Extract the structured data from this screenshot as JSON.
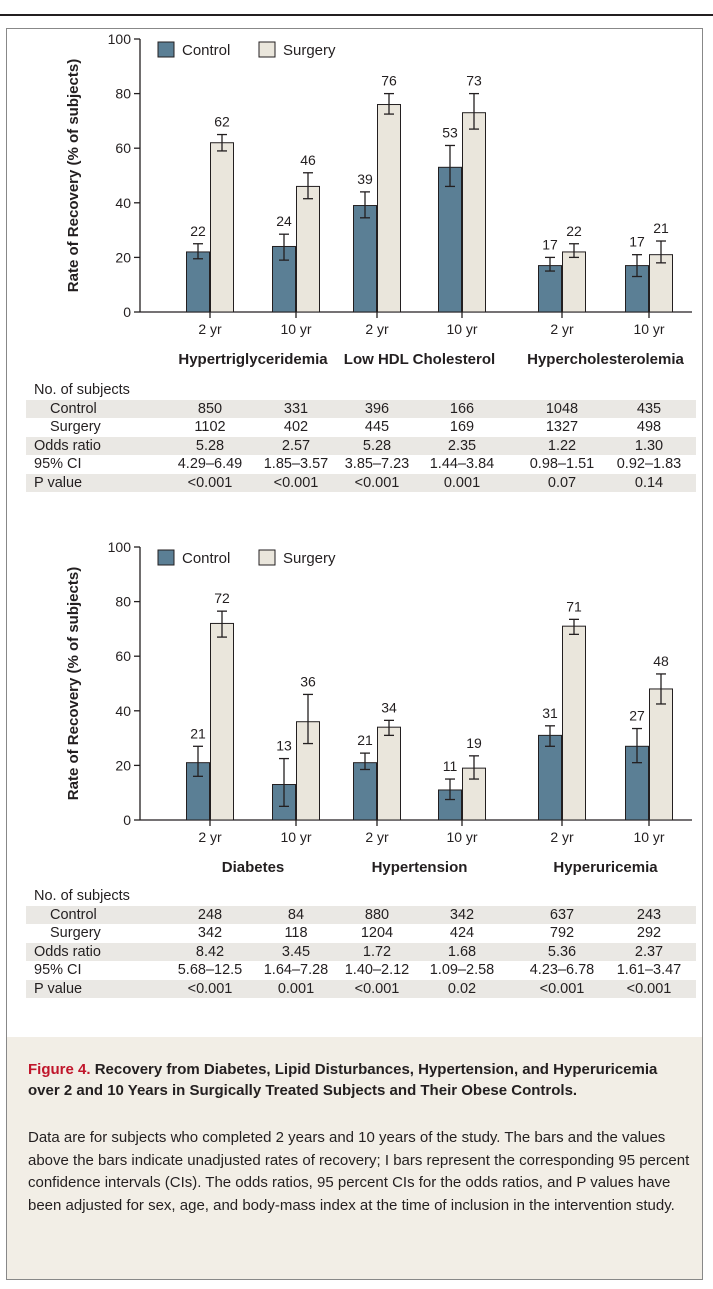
{
  "figure": {
    "label": "Figure 4.",
    "title": "Recovery from Diabetes, Lipid Disturbances, Hypertension, and Hyperuricemia over 2 and 10 Years in Surgically Treated Subjects and Their Obese Controls.",
    "caption": "Data are for subjects who completed 2 years and 10 years of the study. The bars and the values above the bars indicate unadjusted rates of recovery; I bars represent the corresponding 95 percent confidence intervals (CIs). The odds ratios, 95 percent CIs for the odds ratios, and P values have been adjusted for sex, age, and body-mass index at the time of inclusion in the intervention study."
  },
  "colors": {
    "control": "#5b7f95",
    "surgery": "#eae6dc",
    "accent_red": "#c0162b",
    "caption_bg": "#f2eee6"
  },
  "chart_data": [
    {
      "type": "bar",
      "ylabel": "Rate of Recovery (% of subjects)",
      "ylim": [
        0,
        100
      ],
      "yticks": [
        "0",
        "20",
        "40",
        "60",
        "80",
        "100"
      ],
      "legend": [
        "Control",
        "Surgery"
      ],
      "legend_position": "top-left",
      "categories": [
        "2 yr",
        "10 yr",
        "2 yr",
        "10 yr",
        "2 yr",
        "10 yr"
      ],
      "groups": [
        "Hypertriglyceridemia",
        "Low HDL Cholesterol",
        "Hypercholesterolemia"
      ],
      "series": [
        {
          "name": "Control",
          "values": [
            22,
            24,
            39,
            53,
            17,
            17
          ],
          "ci_low": [
            19.5,
            19,
            34.5,
            46,
            15,
            13
          ],
          "ci_high": [
            25,
            28.5,
            44,
            61,
            20,
            21
          ]
        },
        {
          "name": "Surgery",
          "values": [
            62,
            46,
            76,
            73,
            22,
            21
          ],
          "ci_low": [
            59,
            41.5,
            72.5,
            67,
            20,
            18
          ],
          "ci_high": [
            65,
            51,
            80,
            80,
            25,
            26
          ]
        }
      ],
      "table": {
        "heading": "No. of subjects",
        "rows": [
          {
            "label": "Control",
            "values": [
              "850",
              "331",
              "396",
              "166",
              "1048",
              "435"
            ]
          },
          {
            "label": "Surgery",
            "values": [
              "1102",
              "402",
              "445",
              "169",
              "1327",
              "498"
            ]
          },
          {
            "label": "Odds ratio",
            "values": [
              "5.28",
              "2.57",
              "5.28",
              "2.35",
              "1.22",
              "1.30"
            ]
          },
          {
            "label": "95% CI",
            "values": [
              "4.29–6.49",
              "1.85–3.57",
              "3.85–7.23",
              "1.44–3.84",
              "0.98–1.51",
              "0.92–1.83"
            ]
          },
          {
            "label": "P value",
            "values": [
              "<0.001",
              "<0.001",
              "<0.001",
              "0.001",
              "0.07",
              "0.14"
            ]
          }
        ]
      }
    },
    {
      "type": "bar",
      "ylabel": "Rate of Recovery (% of subjects)",
      "ylim": [
        0,
        100
      ],
      "yticks": [
        "0",
        "20",
        "40",
        "60",
        "80",
        "100"
      ],
      "legend": [
        "Control",
        "Surgery"
      ],
      "legend_position": "top-left",
      "categories": [
        "2 yr",
        "10 yr",
        "2 yr",
        "10 yr",
        "2 yr",
        "10 yr"
      ],
      "groups": [
        "Diabetes",
        "Hypertension",
        "Hyperuricemia"
      ],
      "series": [
        {
          "name": "Control",
          "values": [
            21,
            13,
            21,
            11,
            31,
            27
          ],
          "ci_low": [
            16,
            5,
            18.5,
            7.5,
            27,
            21
          ],
          "ci_high": [
            27,
            22.5,
            24.5,
            15,
            34.5,
            33.5
          ]
        },
        {
          "name": "Surgery",
          "values": [
            72,
            36,
            34,
            19,
            71,
            48
          ],
          "ci_low": [
            67,
            28,
            31,
            15,
            68,
            42.5
          ],
          "ci_high": [
            76.5,
            46,
            36.5,
            23.5,
            73.5,
            53.5
          ]
        }
      ],
      "table": {
        "heading": "No. of subjects",
        "rows": [
          {
            "label": "Control",
            "values": [
              "248",
              "84",
              "880",
              "342",
              "637",
              "243"
            ]
          },
          {
            "label": "Surgery",
            "values": [
              "342",
              "118",
              "1204",
              "424",
              "792",
              "292"
            ]
          },
          {
            "label": "Odds ratio",
            "values": [
              "8.42",
              "3.45",
              "1.72",
              "1.68",
              "5.36",
              "2.37"
            ]
          },
          {
            "label": "95% CI",
            "values": [
              "5.68–12.5",
              "1.64–7.28",
              "1.40–2.12",
              "1.09–2.58",
              "4.23–6.78",
              "1.61–3.47"
            ]
          },
          {
            "label": "P value",
            "values": [
              "<0.001",
              "0.001",
              "<0.001",
              "0.02",
              "<0.001",
              "<0.001"
            ]
          }
        ]
      }
    }
  ]
}
